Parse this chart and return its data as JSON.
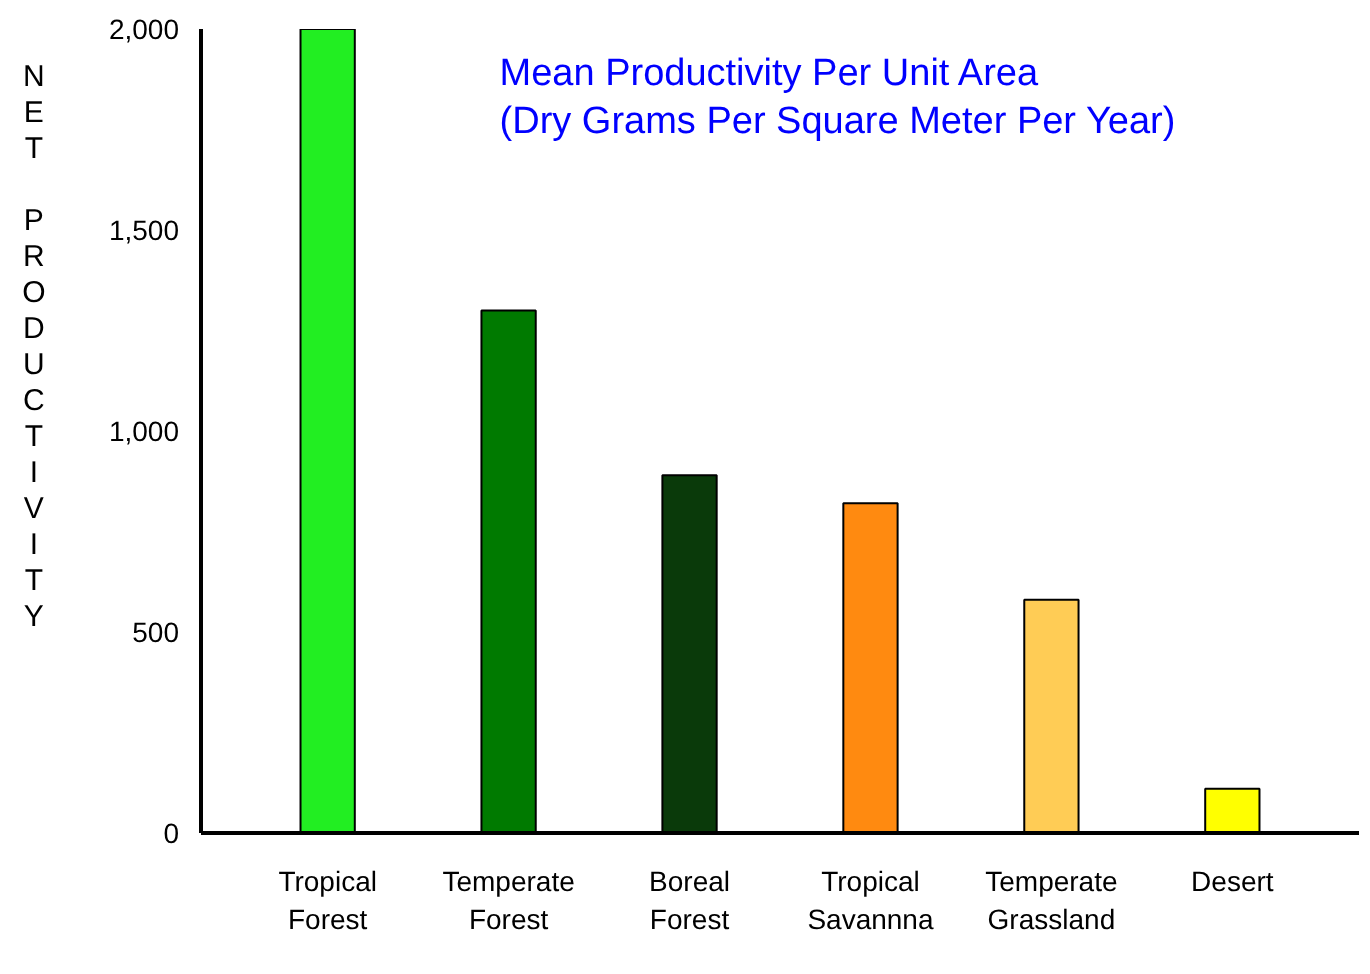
{
  "chart_data": {
    "type": "bar",
    "title": "Mean Productivity Per Unit Area",
    "subtitle": "(Dry Grams Per Square Meter Per Year)",
    "ylabel": "NET PRODUCTIVITY",
    "categories": [
      "Tropical\nForest",
      "Temperate\nForest",
      "Boreal\nForest",
      "Tropical\nSavannna",
      "Temperate\nGrassland",
      "Desert"
    ],
    "values": [
      2000,
      1300,
      890,
      820,
      580,
      110
    ],
    "colors": [
      "#22ee22",
      "#007a00",
      "#0a3a0a",
      "#ff8a10",
      "#ffcc55",
      "#ffff00"
    ],
    "ylim": [
      0,
      2000
    ],
    "yticks": [
      0,
      500,
      {
        "value": 1000,
        "label": "1,000"
      },
      {
        "value": 1500,
        "label": "1,500"
      },
      {
        "value": 2000,
        "label": "2,000"
      }
    ],
    "grid": false
  }
}
